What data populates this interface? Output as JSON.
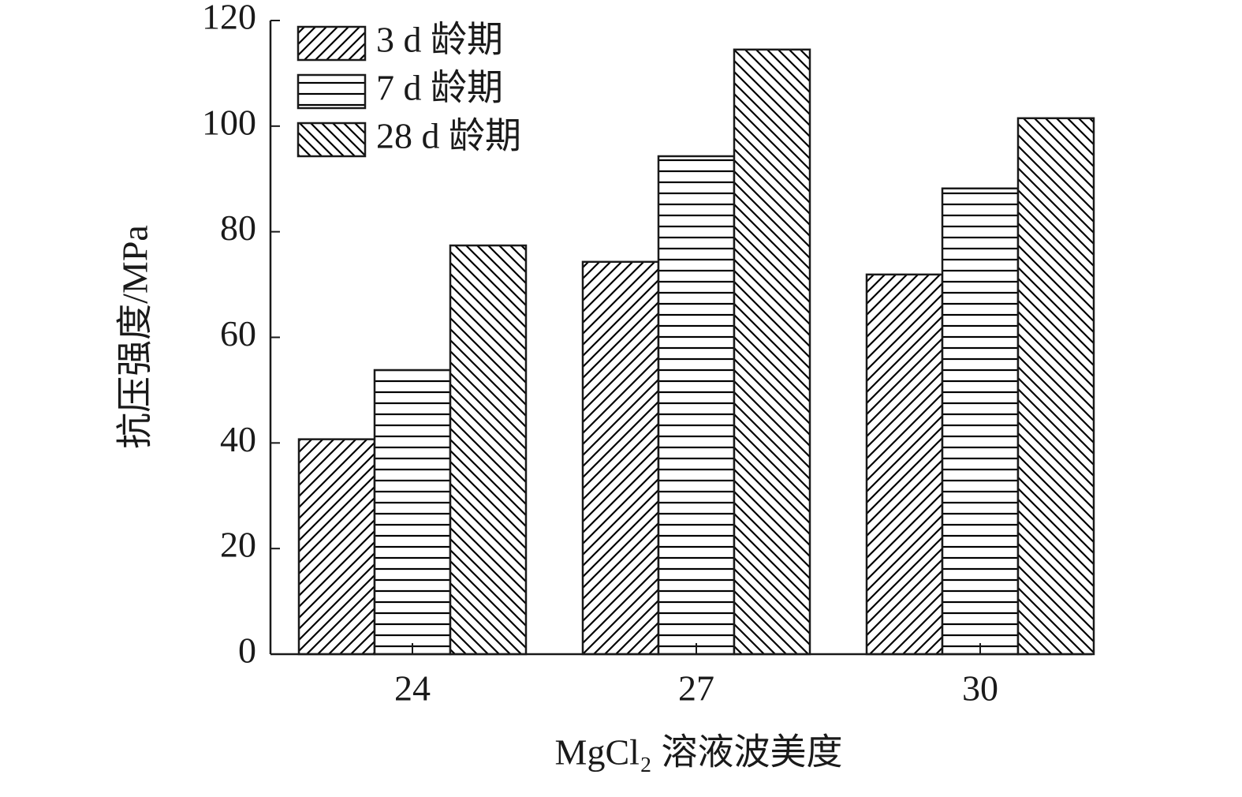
{
  "chart_data": {
    "type": "bar",
    "x_label": "MgCl₂ 溶液波美度",
    "y_label": "抗压强度/MPa",
    "categories": [
      "24",
      "27",
      "30"
    ],
    "series": [
      {
        "name": "3 d 龄期",
        "color": "#000000",
        "hatch": "/",
        "values": [
          40.7,
          74.3,
          71.9
        ]
      },
      {
        "name": "7 d 龄期",
        "color": "#000000",
        "hatch": "-",
        "values": [
          53.8,
          94.3,
          88.2
        ]
      },
      {
        "name": "28 d 龄期",
        "color": "#000000",
        "hatch": "\\",
        "values": [
          77.4,
          114.5,
          101.5
        ]
      }
    ],
    "ylim": [
      0,
      120
    ],
    "yticks": [
      0,
      20,
      40,
      60,
      80,
      100,
      120
    ],
    "legend": "upper left"
  }
}
